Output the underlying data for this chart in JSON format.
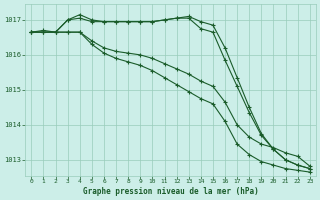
{
  "title": "Graphe pression niveau de la mer (hPa)",
  "bg_color": "#cceee8",
  "grid_color": "#99ccbb",
  "line_color": "#1a5c2a",
  "xlim_min": -0.5,
  "xlim_max": 23.5,
  "ylim": [
    1012.55,
    1017.45
  ],
  "yticks": [
    1013,
    1014,
    1015,
    1016,
    1017
  ],
  "xticks": [
    0,
    1,
    2,
    3,
    4,
    5,
    6,
    7,
    8,
    9,
    10,
    11,
    12,
    13,
    14,
    15,
    16,
    17,
    18,
    19,
    20,
    21,
    22,
    23
  ],
  "series1": [
    1016.65,
    1016.65,
    1016.65,
    1017.0,
    1017.05,
    1016.95,
    1016.95,
    1016.95,
    1016.95,
    1016.95,
    1016.95,
    1017.0,
    1017.05,
    1017.05,
    1016.75,
    1016.65,
    1015.85,
    1015.1,
    1014.35,
    1013.7,
    1013.3,
    1013.0,
    1012.85,
    1012.75
  ],
  "series2": [
    1016.65,
    1016.7,
    1016.65,
    1017.0,
    1017.15,
    1017.0,
    1016.95,
    1016.95,
    1016.95,
    1016.95,
    1016.95,
    1017.0,
    1017.05,
    1017.1,
    1016.95,
    1016.85,
    1016.2,
    1015.35,
    1014.5,
    1013.75,
    1013.3,
    1013.0,
    1012.85,
    1012.75
  ],
  "series3": [
    1016.65,
    1016.65,
    1016.65,
    1016.65,
    1016.65,
    1016.4,
    1016.2,
    1016.1,
    1016.05,
    1016.0,
    1015.9,
    1015.75,
    1015.6,
    1015.45,
    1015.25,
    1015.1,
    1014.65,
    1014.0,
    1013.65,
    1013.45,
    1013.35,
    1013.2,
    1013.1,
    1012.82
  ],
  "series4": [
    1016.65,
    1016.65,
    1016.65,
    1016.65,
    1016.65,
    1016.3,
    1016.05,
    1015.9,
    1015.8,
    1015.7,
    1015.55,
    1015.35,
    1015.15,
    1014.95,
    1014.75,
    1014.6,
    1014.1,
    1013.45,
    1013.15,
    1012.95,
    1012.85,
    1012.75,
    1012.7,
    1012.65
  ]
}
